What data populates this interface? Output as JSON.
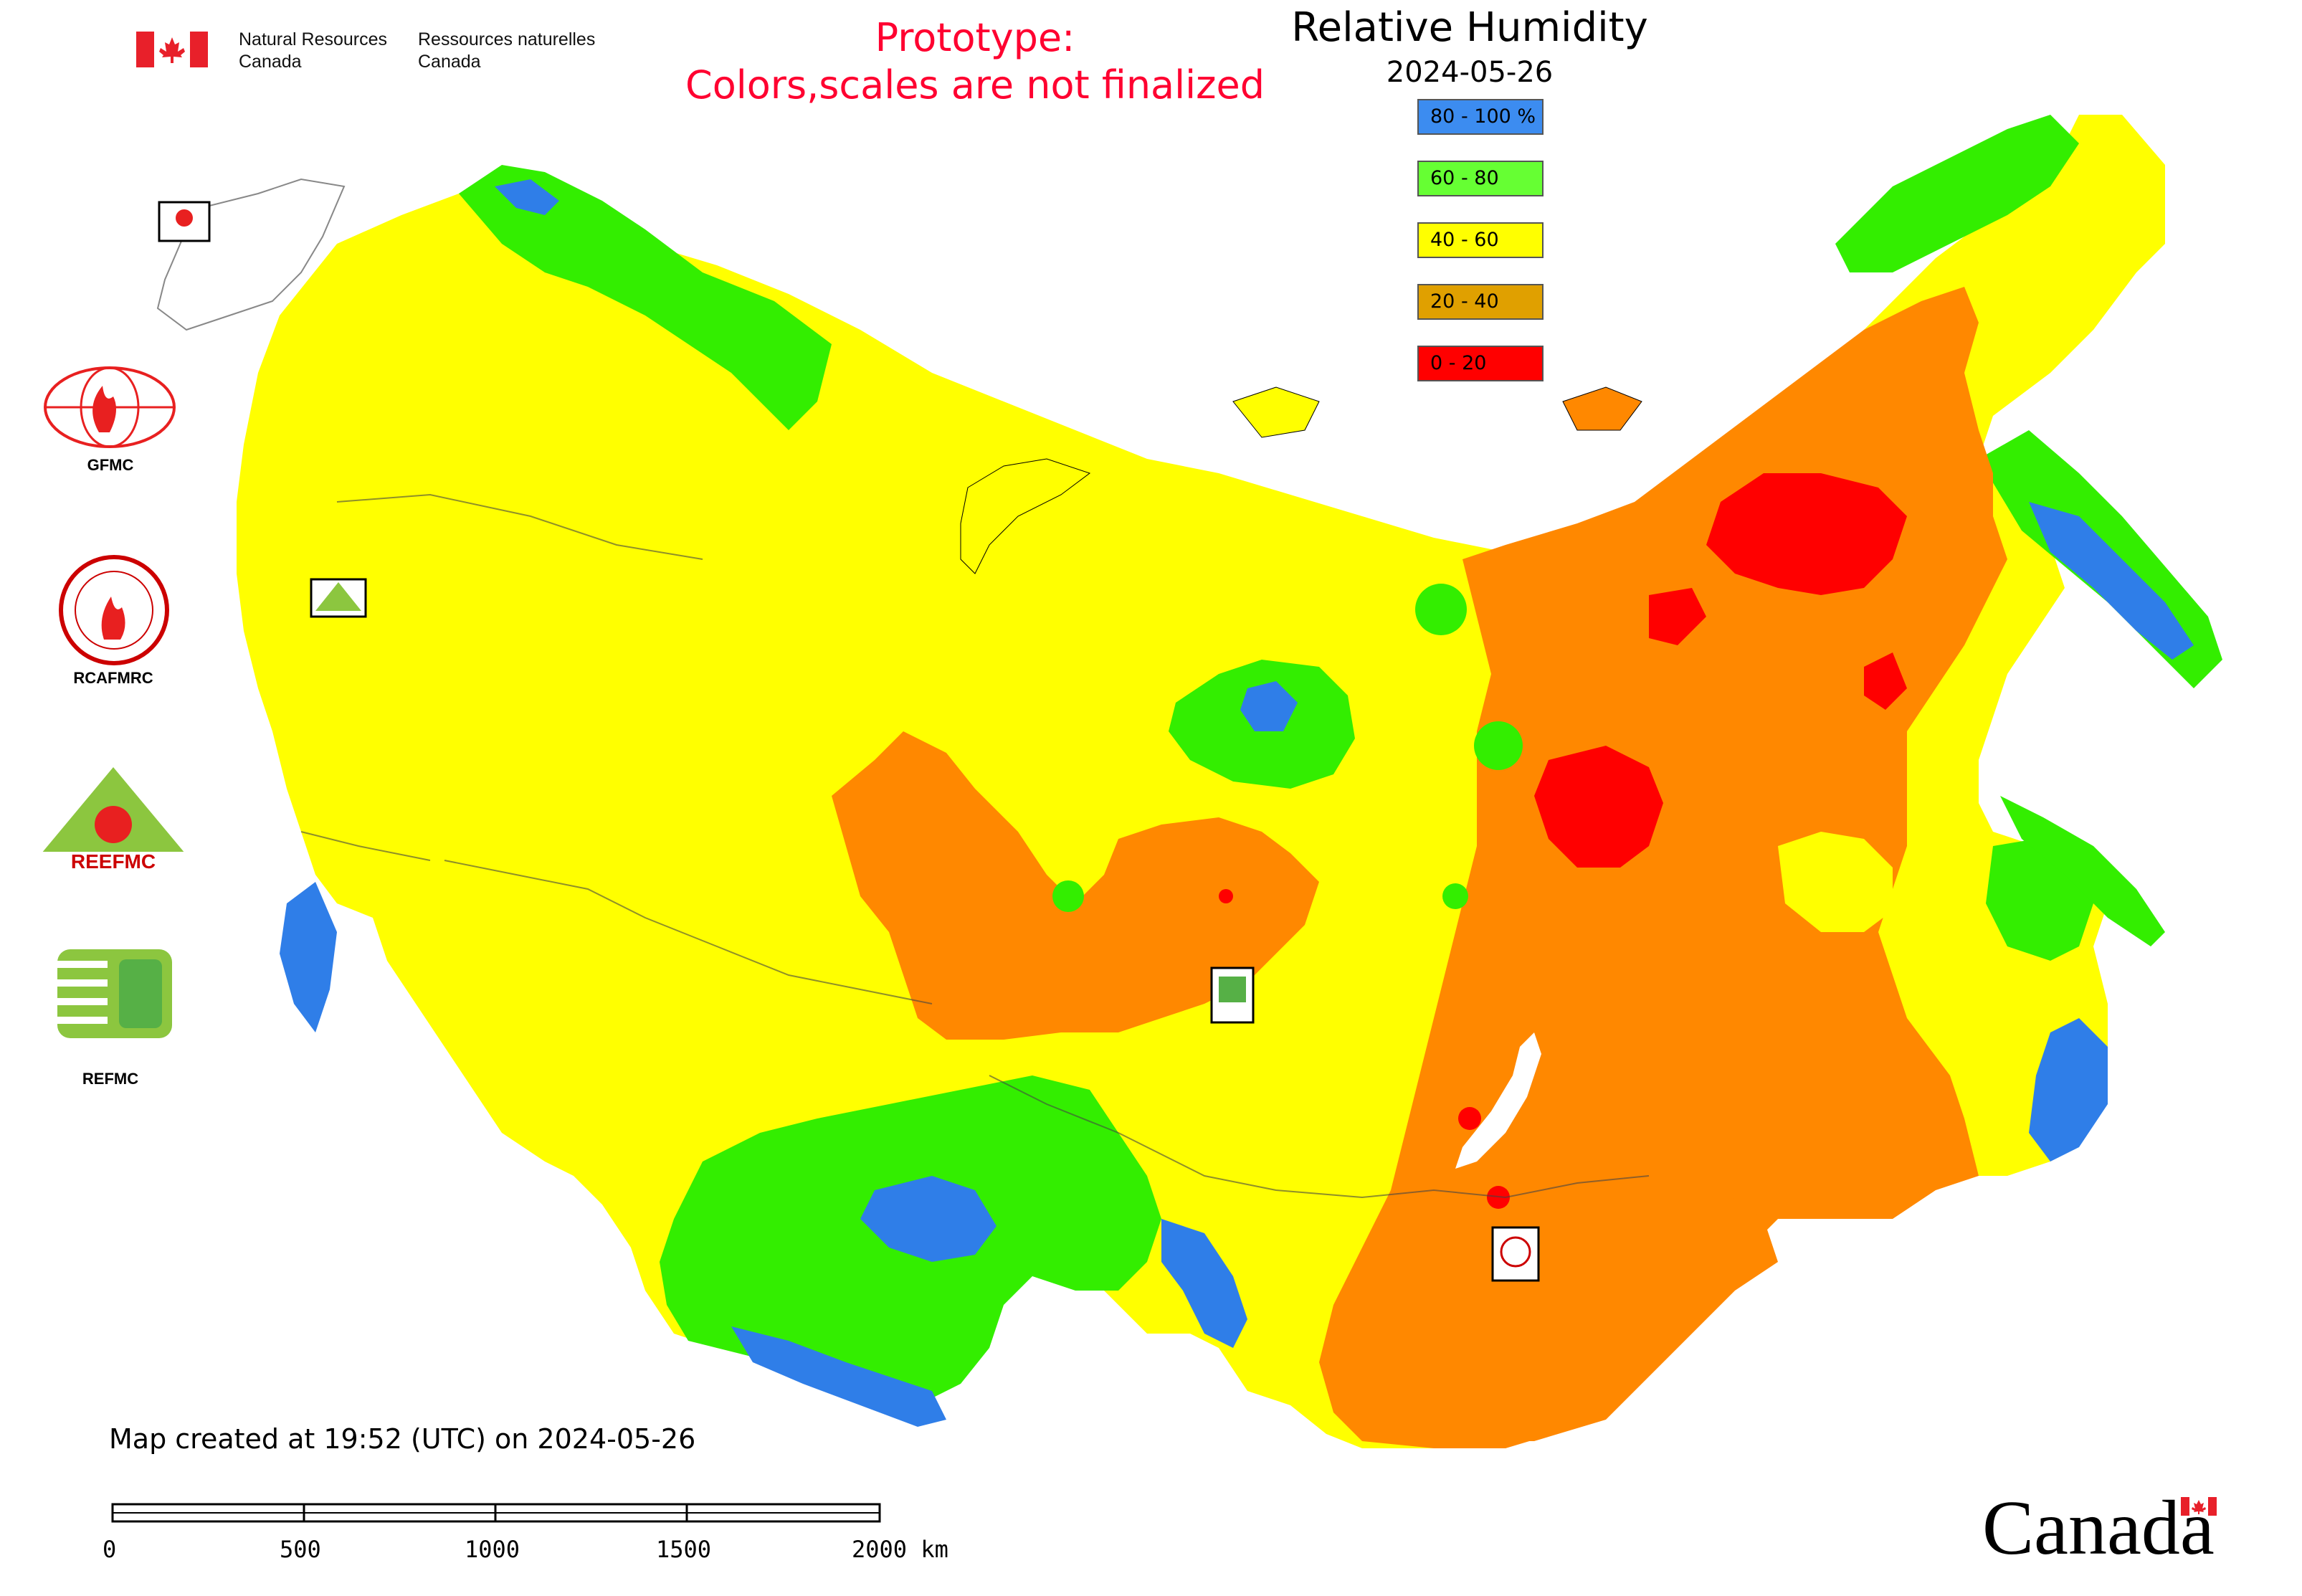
{
  "header": {
    "dept_en": [
      "Natural Resources",
      "Canada"
    ],
    "dept_fr": [
      "Ressources naturelles",
      "Canada"
    ],
    "prototype_notice": [
      "Prototype:",
      "Colors,scales are not finalized"
    ],
    "map_title": "Relative Humidity",
    "map_date": "2024-05-26"
  },
  "legend": [
    {
      "label": "80 - 100 %",
      "color": "#3c8cf0"
    },
    {
      "label": "60 - 80",
      "color": "#66ff33"
    },
    {
      "label": "40 - 60",
      "color": "#ffff00"
    },
    {
      "label": "20 - 40",
      "color": "#e0a000"
    },
    {
      "label": "0 - 20",
      "color": "#ff0000"
    }
  ],
  "map_colors": {
    "blue": "#2f7ee8",
    "green": "#33ee00",
    "yellow": "#ffff00",
    "orange": "#ff8800",
    "red": "#ff0000"
  },
  "logos": {
    "gfmc": "GFMC",
    "rcafmrc": "RCAFMRC",
    "reefmc": "REEFMC",
    "refmc": "REFMC"
  },
  "footer": {
    "created": "Map created at 19:52 (UTC) on 2024-05-26",
    "scale_labels": [
      "0",
      "500",
      "1000",
      "1500",
      "2000 km"
    ],
    "wordmark": "Canada"
  }
}
